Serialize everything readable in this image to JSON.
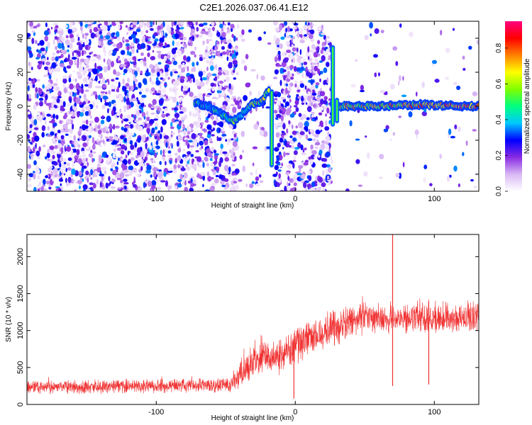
{
  "title": "C2E1.2026.037.06.41.E12",
  "chart_data": [
    {
      "type": "heatmap",
      "name": "spectrogram",
      "xlabel": "Height of straight line (km)",
      "ylabel": "Frequency (Hz)",
      "xlim": [
        -193,
        132
      ],
      "ylim": [
        -50,
        50
      ],
      "xticks": [
        -100,
        0,
        100
      ],
      "yticks": [
        -40,
        -20,
        0,
        20,
        40
      ],
      "colorbar": {
        "label": "Normalized spectral amplitude",
        "range": [
          0,
          0.95
        ],
        "ticks": [
          0.0,
          0.2,
          0.4,
          0.6,
          0.8
        ],
        "colormap": [
          "#ffffff",
          "#d9b8f5",
          "#8a2be2",
          "#0000ff",
          "#00c8ff",
          "#00ff80",
          "#80ff00",
          "#ffff00",
          "#ff8000",
          "#ff0000",
          "#ff0080"
        ]
      },
      "regions": [
        {
          "label": "noise",
          "x": [
            -193,
            -42
          ],
          "density": 0.85
        },
        {
          "label": "gap",
          "x": [
            -42,
            -17
          ],
          "density": 0.15
        },
        {
          "label": "noise",
          "x": [
            -15,
            27
          ],
          "density": 0.85
        },
        {
          "label": "signal",
          "x": [
            30,
            132
          ],
          "density": 0.05
        }
      ],
      "ridge": [
        {
          "x": -72,
          "f": 2,
          "a": 0.35
        },
        {
          "x": -62,
          "f": 0,
          "a": 0.3
        },
        {
          "x": -52,
          "f": -5,
          "a": 0.4
        },
        {
          "x": -45,
          "f": -9,
          "a": 0.45
        },
        {
          "x": -40,
          "f": -6,
          "a": 0.4
        },
        {
          "x": -32,
          "f": 1,
          "a": 0.5
        },
        {
          "x": -24,
          "f": 3,
          "a": 0.6
        },
        {
          "x": -19,
          "f": 10,
          "a": 0.5
        },
        {
          "x": 32,
          "f": 0,
          "a": 0.55
        },
        {
          "x": 60,
          "f": 0,
          "a": 0.6
        },
        {
          "x": 90,
          "f": 1,
          "a": 0.65
        },
        {
          "x": 120,
          "f": 0,
          "a": 0.7
        },
        {
          "x": 132,
          "f": 0,
          "a": 0.7
        }
      ],
      "spikes": [
        {
          "x": -17,
          "f": [
            -36,
            10
          ]
        },
        {
          "x": 27,
          "f": [
            -12,
            36
          ]
        },
        {
          "x": 30,
          "f": [
            -10,
            5
          ]
        }
      ]
    },
    {
      "type": "line",
      "name": "snr",
      "xlabel": "Height of straight line (km)",
      "ylabel": "SNR (10 * v/v)",
      "xlim": [
        -193,
        132
      ],
      "ylim": [
        0,
        2300
      ],
      "xticks": [
        -100,
        0,
        100
      ],
      "yticks": [
        0,
        500,
        1000,
        1500,
        2000
      ],
      "color": "#f03030",
      "envelope": {
        "x": [
          -193,
          -150,
          -100,
          -60,
          -45,
          -35,
          -25,
          -10,
          0,
          15,
          30,
          45,
          60,
          75,
          90,
          110,
          132
        ],
        "base": [
          240,
          240,
          250,
          260,
          280,
          500,
          620,
          680,
          800,
          950,
          1050,
          1150,
          1180,
          1150,
          1180,
          1180,
          1180
        ],
        "amp": [
          110,
          110,
          110,
          110,
          140,
          250,
          280,
          300,
          300,
          300,
          280,
          260,
          240,
          240,
          240,
          250,
          250
        ]
      },
      "notable_points": [
        {
          "x": 70,
          "y": 2300
        },
        {
          "x": 70,
          "y": 250
        },
        {
          "x": 96,
          "y": 270
        },
        {
          "x": -1,
          "y": 80
        }
      ]
    }
  ]
}
